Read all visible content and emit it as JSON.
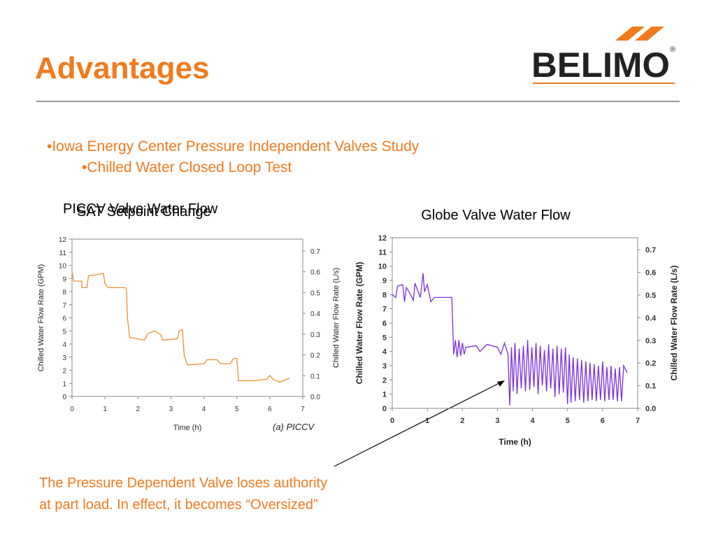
{
  "header": {
    "title": "Advantages",
    "logo": "BELIMO",
    "logo_mark": "®"
  },
  "bullets": [
    "•Iowa Energy Center Pressure Independent Valves Study",
    "•Chilled Water Closed Loop Test"
  ],
  "chart_data": [
    {
      "type": "line",
      "title": "PICCV Valve Water Flow",
      "subtitle": "SAT Setpoint Change",
      "caption": "(a) PICCV",
      "xlabel": "Time (h)",
      "ylabel": "Chilled Water Flow Rate (GPM)",
      "y2label": "Chilled Water Flow Rate (L/s)",
      "color": "#e8902e",
      "x": [
        0,
        0.05,
        0.3,
        0.3,
        0.45,
        0.5,
        0.8,
        0.95,
        1.0,
        1.1,
        1.6,
        1.65,
        1.68,
        1.75,
        2.2,
        2.3,
        2.5,
        2.7,
        2.75,
        3.2,
        3.25,
        3.35,
        3.4,
        3.5,
        4.0,
        4.1,
        4.4,
        4.5,
        4.8,
        4.9,
        5.0,
        5.05,
        5.5,
        5.9,
        6.0,
        6.1,
        6.3,
        6.5,
        6.6
      ],
      "values": [
        9.5,
        8.8,
        8.8,
        8.3,
        8.3,
        9.2,
        9.3,
        9.4,
        8.6,
        8.3,
        8.3,
        8.2,
        6,
        4.5,
        4.3,
        4.8,
        5.0,
        4.7,
        4.3,
        4.4,
        5.0,
        5.1,
        3.2,
        2.4,
        2.5,
        2.8,
        2.8,
        2.5,
        2.5,
        2.9,
        2.9,
        1.2,
        1.2,
        1.3,
        1.6,
        1.3,
        1.1,
        1.3,
        1.4
      ],
      "xlim": [
        0,
        7
      ],
      "xticks": [
        0,
        1,
        2,
        3,
        4,
        5,
        6,
        7
      ],
      "ylim": [
        0,
        12
      ],
      "yticks": [
        0,
        1,
        2,
        3,
        4,
        5,
        6,
        7,
        8,
        9,
        10,
        11,
        12
      ],
      "y2lim": [
        0,
        0.757
      ],
      "y2ticks": [
        {
          "value": 0,
          "label": "0.0"
        },
        0.1,
        0.2,
        0.3,
        0.4,
        0.5,
        0.6,
        0.7
      ]
    },
    {
      "type": "line",
      "title": "Globe Valve Water Flow",
      "xlabel": "Time (h)",
      "ylabel": "Chilled Water Flow Rate (GPM)",
      "y2label": "Chilled Water Flow Rate (L/s)",
      "color": "#7a2ee0",
      "x": [
        0,
        0.1,
        0.15,
        0.3,
        0.35,
        0.4,
        0.5,
        0.6,
        0.65,
        0.8,
        0.88,
        0.92,
        1.0,
        1.1,
        1.2,
        1.6,
        1.7,
        1.75,
        1.8,
        1.85,
        1.9,
        1.95,
        2.0,
        2.05,
        2.1,
        2.4,
        2.5,
        2.7,
        3.0,
        3.1,
        3.2,
        3.3,
        3.35,
        3.4,
        3.45,
        3.5,
        3.56,
        3.62,
        3.68,
        3.74,
        3.8,
        3.86,
        3.92,
        3.98,
        4.04,
        4.1,
        4.16,
        4.22,
        4.28,
        4.34,
        4.4,
        4.46,
        4.52,
        4.58,
        4.64,
        4.7,
        4.76,
        4.82,
        4.88,
        4.94,
        5.0,
        5.05,
        5.1,
        5.16,
        5.22,
        5.28,
        5.34,
        5.4,
        5.46,
        5.52,
        5.58,
        5.64,
        5.7,
        5.76,
        5.82,
        5.88,
        5.94,
        6.0,
        6.06,
        6.12,
        6.18,
        6.24,
        6.3,
        6.36,
        6.42,
        6.48,
        6.54,
        6.6,
        6.7
      ],
      "values": [
        8,
        7.8,
        8.6,
        8.7,
        7.5,
        8.5,
        8.1,
        7.6,
        8.8,
        7.8,
        9.5,
        8.2,
        8.7,
        7.5,
        7.8,
        7.8,
        7.8,
        3.8,
        4.8,
        3.6,
        4.8,
        3.7,
        4.6,
        3.8,
        4.3,
        4.4,
        4.0,
        4.5,
        4.3,
        3.8,
        4.6,
        3.8,
        0.2,
        4.3,
        1.2,
        4.6,
        1.0,
        4.2,
        1.4,
        4.4,
        1.2,
        4.8,
        1.3,
        4.3,
        1.5,
        4.6,
        1.0,
        4.4,
        1.6,
        4.1,
        1.2,
        4.5,
        1.4,
        4.2,
        0.8,
        4.4,
        1.0,
        4.2,
        1.1,
        4.3,
        0.3,
        3.8,
        0.4,
        3.6,
        0.5,
        3.5,
        0.6,
        3.4,
        0.4,
        3.3,
        0.5,
        3.2,
        0.6,
        3.1,
        0.5,
        3.0,
        0.6,
        3.3,
        0.5,
        2.9,
        0.6,
        3.0,
        0.6,
        2.8,
        0.5,
        2.9,
        0.5,
        3.0,
        2.5
      ],
      "xlim": [
        0,
        7
      ],
      "xticks": [
        0,
        1,
        2,
        3,
        4,
        5,
        6,
        7
      ],
      "ylim": [
        0,
        12
      ],
      "yticks": [
        0,
        1,
        2,
        3,
        4,
        5,
        6,
        7,
        8,
        9,
        10,
        11,
        12
      ],
      "y2lim": [
        0,
        0.753
      ],
      "y2ticks": [
        {
          "value": 0,
          "label": "0.0"
        },
        0.1,
        0.2,
        0.3,
        0.4,
        0.5,
        0.6,
        0.7
      ]
    }
  ],
  "annotation": [
    "The Pressure Dependent Valve loses authority",
    "at part load. In effect, it becomes “Oversized”"
  ]
}
